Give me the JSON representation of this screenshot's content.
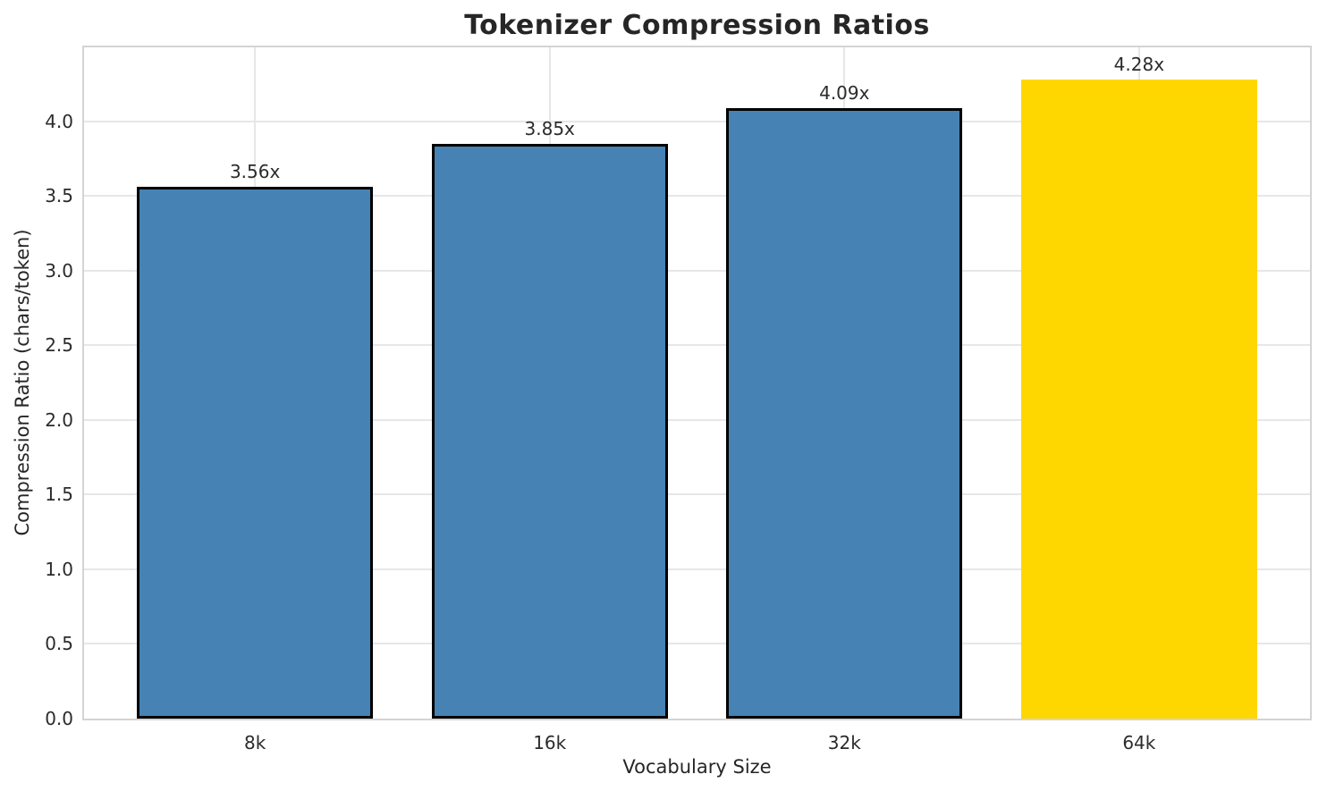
{
  "chart_data": {
    "type": "bar",
    "title": "Tokenizer Compression Ratios",
    "xlabel": "Vocabulary Size",
    "ylabel": "Compression Ratio (chars/token)",
    "categories": [
      "8k",
      "16k",
      "32k",
      "64k"
    ],
    "values": [
      3.56,
      3.85,
      4.09,
      4.28
    ],
    "bar_labels": [
      "3.56x",
      "3.85x",
      "4.09x",
      "4.28x"
    ],
    "highlight_index": 3,
    "ylim": [
      0,
      4.494
    ],
    "yticks": [
      0.0,
      0.5,
      1.0,
      1.5,
      2.0,
      2.5,
      3.0,
      3.5,
      4.0
    ],
    "ytick_labels": [
      "0.0",
      "0.5",
      "1.0",
      "1.5",
      "2.0",
      "2.5",
      "3.0",
      "3.5",
      "4.0"
    ],
    "grid": true,
    "legend": false,
    "colors": {
      "bar_default": "#4682B4",
      "bar_highlight": "#FFD700",
      "bar_edge": "#000000",
      "grid": "#e7e7e7",
      "spine": "#d4d4d4",
      "text": "#262626"
    }
  }
}
